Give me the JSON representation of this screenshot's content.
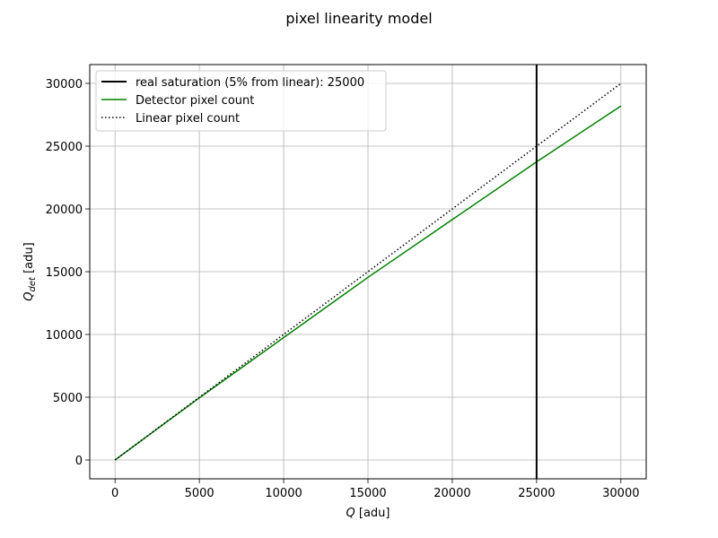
{
  "chart_data": {
    "type": "line",
    "title": "pixel linearity model",
    "xlabel": {
      "main": "Q",
      "rest": " [adu]"
    },
    "ylabel": {
      "main": "Q",
      "sub": "det",
      "rest": " [adu]"
    },
    "xlim": [
      -1500,
      31500
    ],
    "ylim": [
      -1500,
      31500
    ],
    "xticks": [
      0,
      5000,
      10000,
      15000,
      20000,
      25000,
      30000
    ],
    "yticks": [
      0,
      5000,
      10000,
      15000,
      20000,
      25000,
      30000
    ],
    "grid": true,
    "legend_position": "upper-left",
    "saturation": {
      "label": "real saturation (5% from linear): 25000",
      "x": 25000,
      "color": "#000000"
    },
    "series": [
      {
        "name": "Detector pixel count",
        "color": "#008000",
        "style": "solid",
        "x": [
          0,
          5000,
          10000,
          15000,
          20000,
          25000,
          30000
        ],
        "y": [
          0,
          4950,
          9750,
          14550,
          19150,
          23750,
          28200
        ]
      },
      {
        "name": "Linear pixel count",
        "color": "#000000",
        "style": "dotted",
        "x": [
          0,
          30000
        ],
        "y": [
          0,
          30000
        ]
      }
    ]
  }
}
